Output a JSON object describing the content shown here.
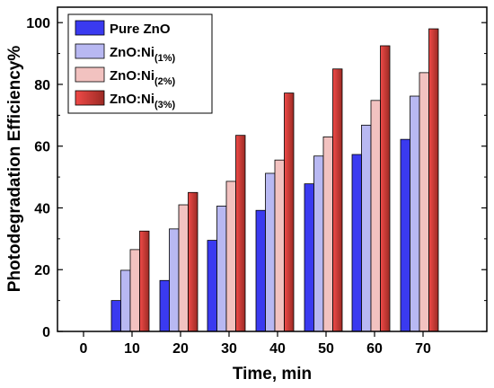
{
  "chart_data": {
    "type": "bar",
    "xlabel": "Time, min",
    "ylabel": "Photodegradation Efficiency%",
    "x_ticks": [
      "0",
      "10",
      "20",
      "30",
      "40",
      "50",
      "60",
      "70"
    ],
    "y_ticks": [
      "0",
      "20",
      "40",
      "60",
      "80",
      "100"
    ],
    "ylim": [
      0,
      105
    ],
    "categories": [
      "10",
      "20",
      "30",
      "40",
      "50",
      "60",
      "70"
    ],
    "series": [
      {
        "name": "Pure ZnO",
        "color": "#3a3af0",
        "values": [
          10,
          16.5,
          29.5,
          39.2,
          47.8,
          57.3,
          62.2
        ]
      },
      {
        "name": "ZnO:Ni(1%)",
        "color": "#b8b8f2",
        "values": [
          19.8,
          33.2,
          40.6,
          51.2,
          56.8,
          66.8,
          76.2
        ]
      },
      {
        "name": "ZnO:Ni(2%)",
        "color": "#f2c2c0",
        "values": [
          26.5,
          41.0,
          48.6,
          55.5,
          63.0,
          74.8,
          83.8
        ]
      },
      {
        "name": "ZnO:Ni(3%)",
        "color": "#e83c3c",
        "values": [
          32.5,
          45.0,
          63.5,
          77.2,
          85.0,
          92.5,
          98.0
        ]
      }
    ],
    "legend": [
      {
        "base": "Pure ZnO",
        "sub": ""
      },
      {
        "base": "ZnO:Ni",
        "sub": "(1%)"
      },
      {
        "base": "ZnO:Ni",
        "sub": "(2%)"
      },
      {
        "base": "ZnO:Ni",
        "sub": "(3%)"
      }
    ],
    "legend_position": "top-left",
    "grid": false
  }
}
